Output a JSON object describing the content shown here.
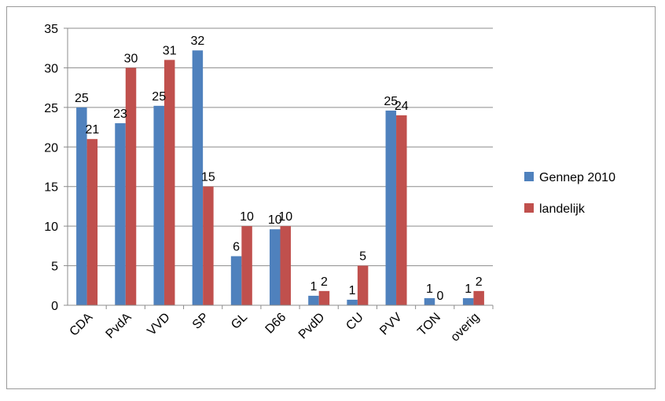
{
  "chart_data": {
    "type": "bar",
    "categories": [
      "CDA",
      "PvdA",
      "VVD",
      "SP",
      "GL",
      "D66",
      "PvdD",
      "CU",
      "PVV",
      "TON",
      "overig"
    ],
    "series": [
      {
        "name": "Gennep 2010",
        "color": "#4F81BD",
        "values": [
          25,
          23,
          25.2,
          32.2,
          6.2,
          9.6,
          1.2,
          0.7,
          24.6,
          0.9,
          0.9
        ],
        "labels": [
          "25",
          "23",
          "25",
          "32",
          "6",
          "10",
          "1",
          "1",
          "25",
          "1",
          "1"
        ]
      },
      {
        "name": "landelijk",
        "color": "#C0504D",
        "values": [
          21,
          30,
          31,
          15,
          10,
          10,
          1.8,
          5,
          24,
          0,
          1.8
        ],
        "labels": [
          "21",
          "30",
          "31",
          "15",
          "10",
          "10",
          "2",
          "5",
          "24",
          "0",
          "2"
        ]
      }
    ],
    "yticks": [
      "0",
      "5",
      "10",
      "15",
      "20",
      "25",
      "30",
      "35"
    ],
    "ylim": [
      0,
      35
    ],
    "grid": true,
    "legend_position": "right"
  }
}
